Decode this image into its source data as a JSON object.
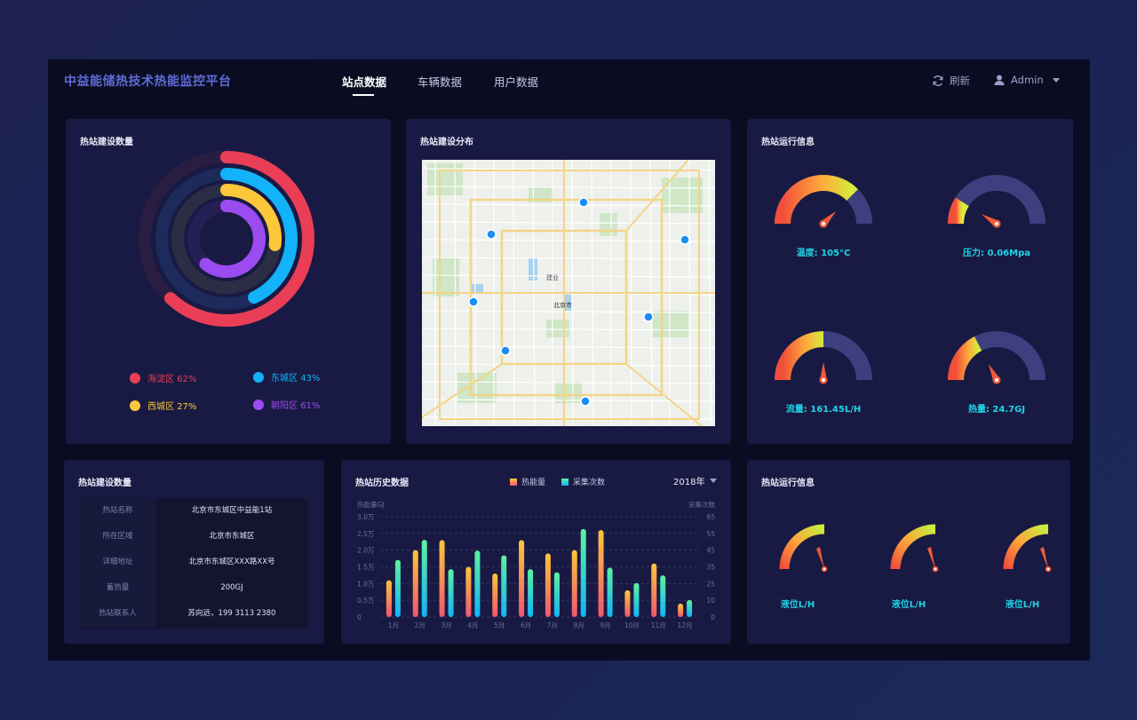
{
  "header": {
    "title": "中益能储热技术热能监控平台",
    "tabs": [
      {
        "label": "站点数据",
        "active": true
      },
      {
        "label": "车辆数据",
        "active": false
      },
      {
        "label": "用户数据",
        "active": false
      }
    ],
    "refresh_label": "刷新",
    "user_name": "Admin",
    "refresh_icon": "refresh-icon",
    "user_icon": "user-icon"
  },
  "donut_panel": {
    "title": "热站建设数量",
    "items": [
      {
        "name": "海淀区",
        "percent": 62,
        "label": "62%",
        "color": "#ea3e57"
      },
      {
        "name": "东城区",
        "percent": 43,
        "label": "43%",
        "color": "#12b3f8"
      },
      {
        "name": "西城区",
        "percent": 27,
        "label": "27%",
        "color": "#fdc73a"
      },
      {
        "name": "朝阳区",
        "percent": 61,
        "label": "61%",
        "color": "#9b4cf0"
      }
    ]
  },
  "map_panel": {
    "title": "热站建设分布",
    "city_label": "北京市",
    "district_label": "建业"
  },
  "gauge_panel": {
    "title": "热站运行信息",
    "gauges": [
      {
        "label": "温度: 105°C",
        "level": 0.75
      },
      {
        "label": "压力: 0.06Mpa",
        "level": 0.18
      },
      {
        "label": "流量: 161.45L/H",
        "level": 0.5
      },
      {
        "label": "热量: 24.7GJ",
        "level": 0.35
      }
    ]
  },
  "info_panel": {
    "title": "热站建设数量",
    "rows": [
      {
        "key": "热站名称",
        "value": "北京市东城区中益能1站"
      },
      {
        "key": "所在区域",
        "value": "北京市东城区"
      },
      {
        "key": "详细地址",
        "value": "北京市东城区XXX路XX号"
      },
      {
        "key": "蓄热量",
        "value": "200GJ"
      },
      {
        "key": "热站联系人",
        "value": "苏向远，199 3113 2380"
      }
    ]
  },
  "history_panel": {
    "title": "热站历史数据",
    "legend_heat": "热能量",
    "legend_count": "采集次数",
    "year": "2018年"
  },
  "chart_data": {
    "type": "bar",
    "categories": [
      "1月",
      "2月",
      "3月",
      "4月",
      "5月",
      "6月",
      "7月",
      "8月",
      "9月",
      "10月",
      "11月",
      "12月"
    ],
    "series": [
      {
        "name": "热能量",
        "values": [
          1.1,
          2.0,
          2.3,
          1.5,
          1.3,
          2.3,
          1.9,
          2.0,
          2.6,
          0.8,
          1.6,
          0.4
        ],
        "color_top": "#fdc73a",
        "color_bottom": "#f0566e"
      },
      {
        "name": "采集次数",
        "values": [
          37,
          50,
          31,
          43,
          40,
          31,
          29,
          57,
          32,
          22,
          27,
          11
        ],
        "color_top": "#5df2a0",
        "color_bottom": "#12b3f8"
      }
    ],
    "ylabel": "热能量GJ",
    "y2label": "采集次数",
    "ylim": [
      0,
      3.0
    ],
    "y2lim": [
      0,
      65
    ],
    "yticks": [
      "0",
      "0.5万",
      "1.0万",
      "1.5万",
      "2.0万",
      "2.5万",
      "3.0万"
    ],
    "y2ticks": [
      "0",
      "10",
      "25",
      "35",
      "45",
      "55",
      "65"
    ],
    "grid": true
  },
  "level_panel": {
    "title": "热站运行信息",
    "gauges": [
      {
        "label": "液位L/H"
      },
      {
        "label": "液位L/H"
      },
      {
        "label": "液位L/H"
      }
    ]
  }
}
